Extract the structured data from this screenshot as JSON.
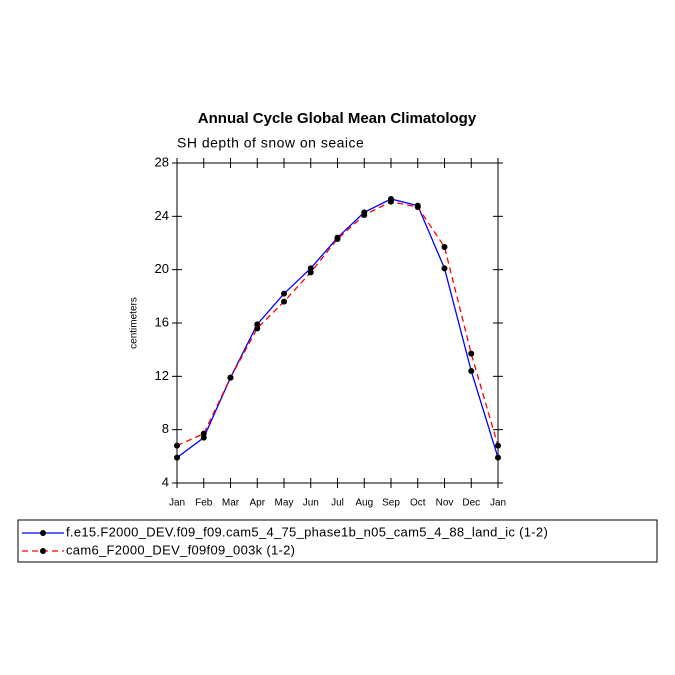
{
  "chart_data": {
    "type": "line",
    "title": "Annual Cycle Global Mean Climatology",
    "subtitle": "SH depth of snow on seaice",
    "y_label": "centimeters",
    "categories": [
      "Jan",
      "Feb",
      "Mar",
      "Apr",
      "May",
      "Jun",
      "Jul",
      "Aug",
      "Sep",
      "Oct",
      "Nov",
      "Dec",
      "Jan"
    ],
    "series": [
      {
        "name": "f.e15.F2000_DEV.f09_f09.cam5_4_75_phase1b_n05_cam5_4_88_land_ic (1-2)",
        "color": "#0000ff",
        "line_style": "solid",
        "values": [
          5.9,
          7.4,
          11.9,
          15.9,
          18.2,
          20.1,
          22.4,
          24.3,
          25.3,
          24.8,
          20.1,
          12.4,
          5.9
        ]
      },
      {
        "name": "cam6_F2000_DEV_f09f09_003k (1-2)",
        "color": "#ff0000",
        "line_style": "dashed",
        "values": [
          6.8,
          7.7,
          11.9,
          15.6,
          17.6,
          19.8,
          22.3,
          24.1,
          25.1,
          24.7,
          21.7,
          13.7,
          6.8
        ]
      }
    ],
    "ylim": [
      4,
      28
    ],
    "yticks": [
      4,
      8,
      12,
      16,
      20,
      24,
      28
    ],
    "grid": false
  }
}
